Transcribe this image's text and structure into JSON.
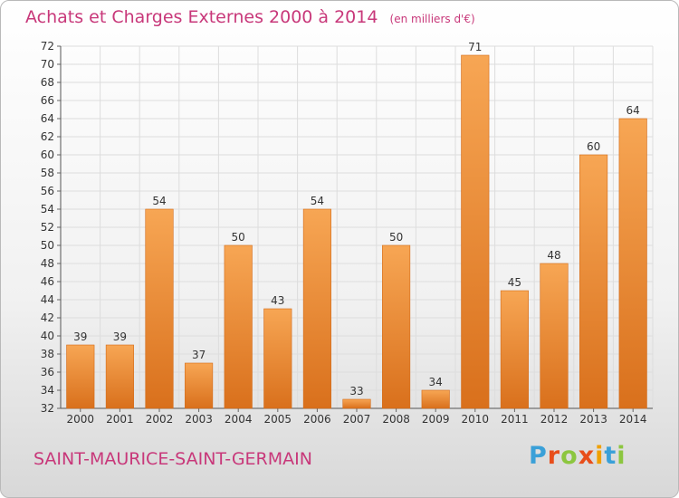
{
  "header": {
    "title": "Achats et Charges Externes 2000 à 2014",
    "subtitle": "(en milliers d'€)"
  },
  "footer": {
    "commune": "SAINT-MAURICE-SAINT-GERMAIN",
    "logo": "Proxiti"
  },
  "logo_colors": [
    "#3aa0d8",
    "#e84e1b",
    "#8cc63f",
    "#e84e1b",
    "#f0a000",
    "#3aa0d8",
    "#8cc63f"
  ],
  "chart_data": {
    "type": "bar",
    "title": "Achats et Charges Externes 2000 à 2014",
    "subtitle": "(en milliers d'€)",
    "categories": [
      "2000",
      "2001",
      "2002",
      "2003",
      "2004",
      "2005",
      "2006",
      "2007",
      "2008",
      "2009",
      "2010",
      "2011",
      "2012",
      "2013",
      "2014"
    ],
    "values": [
      39,
      39,
      54,
      37,
      50,
      43,
      54,
      33,
      50,
      34,
      71,
      45,
      48,
      60,
      64
    ],
    "ylim": [
      32,
      72
    ],
    "yticks": [
      32,
      34,
      36,
      38,
      40,
      42,
      44,
      46,
      48,
      50,
      52,
      54,
      56,
      58,
      60,
      62,
      64,
      66,
      68,
      70,
      72
    ],
    "grid": true,
    "data_labels": true,
    "bar_color": "#f0913a"
  }
}
